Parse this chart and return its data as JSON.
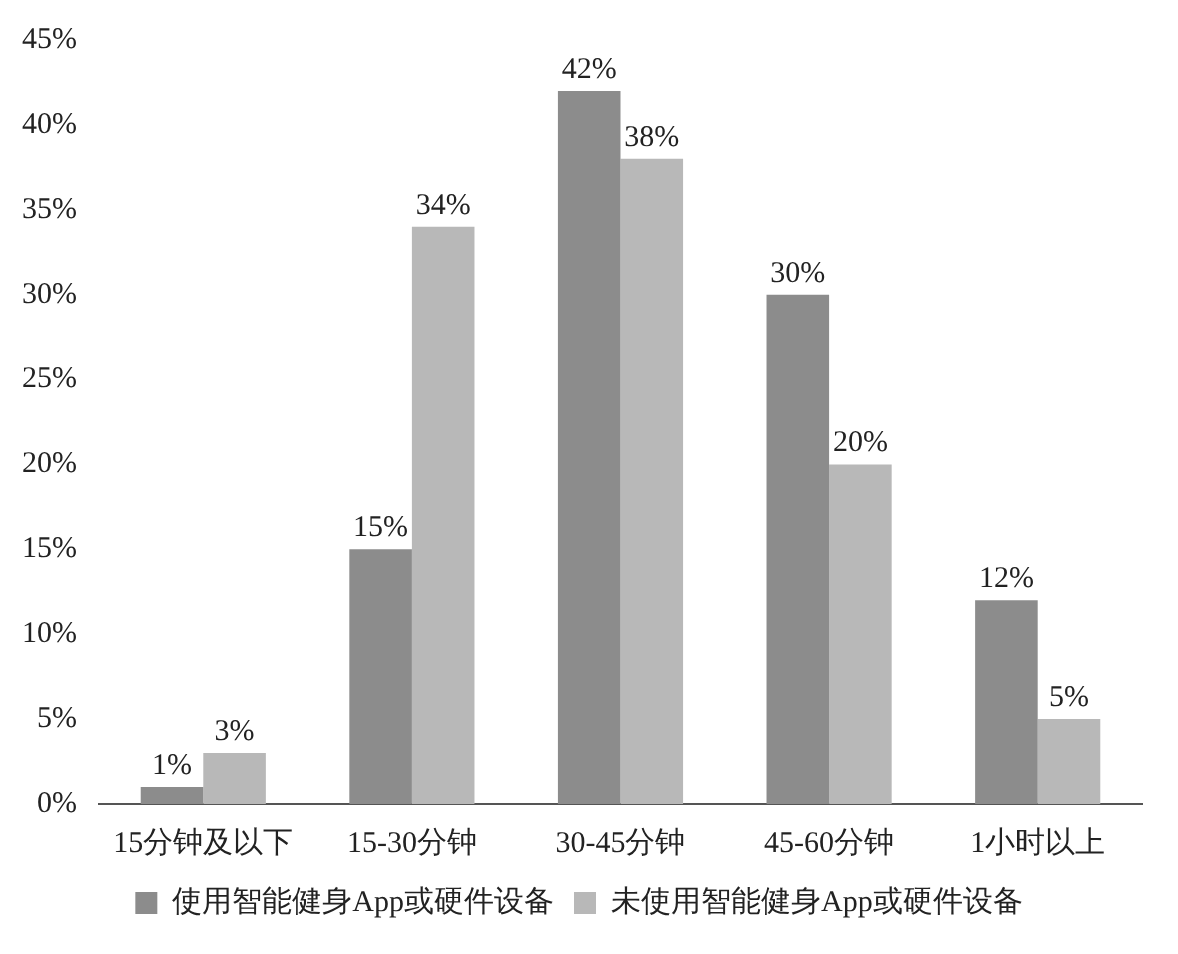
{
  "chart_data": {
    "type": "bar",
    "categories": [
      "15分钟及以下",
      "15-30分钟",
      "30-45分钟",
      "45-60分钟",
      "1小时以上"
    ],
    "series": [
      {
        "name": "使用智能健身App或硬件设备",
        "color": "#8c8c8c",
        "values": [
          1,
          15,
          42,
          30,
          12
        ],
        "value_labels": [
          "1%",
          "15%",
          "42%",
          "30%",
          "12%"
        ]
      },
      {
        "name": "未使用智能健身App或硬件设备",
        "color": "#b8b8b8",
        "values": [
          3,
          34,
          38,
          20,
          5
        ],
        "value_labels": [
          "3%",
          "34%",
          "38%",
          "20%",
          "5%"
        ]
      }
    ],
    "ylim": [
      0,
      45
    ],
    "yticks": [
      {
        "value": 0,
        "label": "0%"
      },
      {
        "value": 5,
        "label": "5%"
      },
      {
        "value": 10,
        "label": "10%"
      },
      {
        "value": 15,
        "label": "15%"
      },
      {
        "value": 20,
        "label": "20%"
      },
      {
        "value": 25,
        "label": "25%"
      },
      {
        "value": 30,
        "label": "30%"
      },
      {
        "value": 35,
        "label": "35%"
      },
      {
        "value": 40,
        "label": "40%"
      },
      {
        "value": 45,
        "label": "45%"
      }
    ],
    "grid": false,
    "legend": "bottom"
  }
}
